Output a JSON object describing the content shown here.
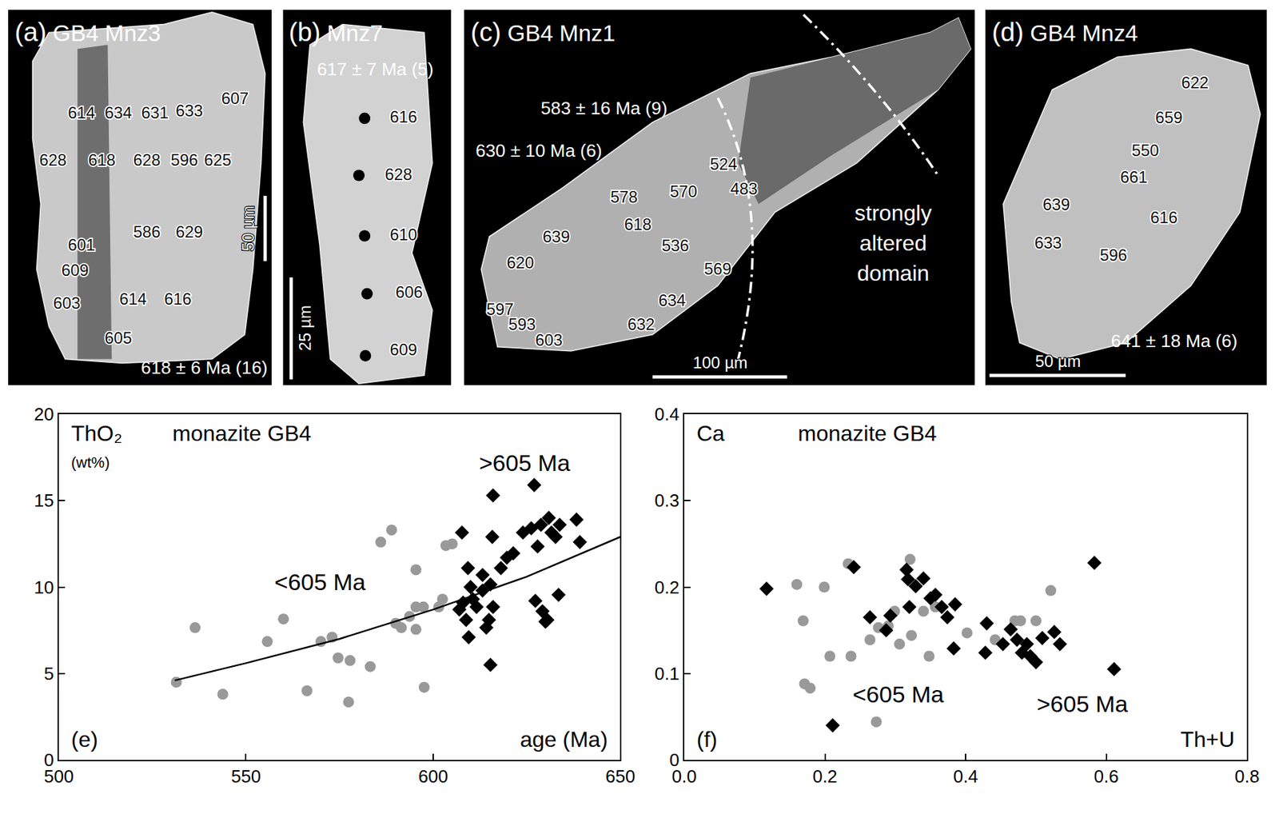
{
  "images": [
    {
      "panel": "(a)",
      "title": "GB4 Mnz3",
      "spot_ages": [
        614,
        634,
        631,
        633,
        607,
        628,
        618,
        628,
        596,
        625,
        586,
        629,
        601,
        609,
        603,
        614,
        616,
        605
      ],
      "mean_ages": [
        "618 ± 6 Ma (16)"
      ],
      "scale_bar": "50 µm"
    },
    {
      "panel": "(b)",
      "title": "Mnz7",
      "spot_ages": [
        616,
        628,
        610,
        606,
        609
      ],
      "mean_ages": [
        "617 ± 7 Ma (5)"
      ],
      "scale_bar": "25 µm"
    },
    {
      "panel": "(c)",
      "title": "GB4 Mnz1",
      "spot_ages": [
        524,
        483,
        578,
        570,
        618,
        639,
        536,
        569,
        620,
        634,
        632,
        597,
        593,
        603
      ],
      "mean_ages": [
        "583 ± 16 Ma (9)",
        "630 ± 10 Ma (6)"
      ],
      "domain_label": "strongly altered domain",
      "scale_bar": "100 µm"
    },
    {
      "panel": "(d)",
      "title": "GB4 Mnz4",
      "spot_ages": [
        622,
        659,
        550,
        661,
        639,
        616,
        633,
        596
      ],
      "mean_ages": [
        "641 ± 18 Ma (6)"
      ],
      "scale_bar": "50 µm"
    }
  ],
  "chart_data": [
    {
      "type": "scatter",
      "panel": "(e)",
      "title": "monazite GB4",
      "ylabel": [
        "ThO₂",
        "(wt%)"
      ],
      "xlabel": "age (Ma)",
      "xlim": [
        500,
        650
      ],
      "xticks": [
        500,
        550,
        600,
        650
      ],
      "ylim": [
        0,
        20
      ],
      "yticks": [
        0,
        5,
        10,
        15,
        20
      ],
      "grid": false,
      "series": [
        {
          "name": "<605 Ma",
          "color": "#999999",
          "marker": "circle",
          "x": [
            531.4,
            536.4,
            543.8,
            555.7,
            560,
            566.3,
            570,
            573,
            574.6,
            577.8,
            577.4,
            583.2,
            586,
            588.9,
            590,
            591.5,
            593.7,
            595.4,
            595.4,
            595.4,
            597.4,
            597.6,
            601.5,
            602.5,
            603.4,
            605.1
          ],
          "values": [
            4.5,
            7.65,
            3.8,
            6.85,
            8.15,
            4.0,
            6.85,
            7.1,
            5.9,
            5.75,
            3.35,
            5.4,
            12.6,
            13.3,
            7.9,
            7.65,
            8.3,
            11.0,
            8.85,
            7.55,
            8.85,
            4.2,
            8.85,
            9.3,
            12.4,
            12.5
          ]
        },
        {
          "name": ">605 Ma",
          "color": "#000000",
          "marker": "diamond",
          "x": [
            607.7,
            607,
            608,
            608.8,
            610,
            609.3,
            610.6,
            611.6,
            609.5,
            613.2,
            613.2,
            614.2,
            614.9,
            615.3,
            615.3,
            615.8,
            616,
            616,
            618.1,
            619.7,
            621.4,
            624,
            626.2,
            627,
            627.3,
            627.9,
            628.8,
            629.2,
            630,
            630.5,
            630.9,
            631.6,
            632.7,
            633.8,
            633.5,
            638.3,
            639.2
          ],
          "values": [
            13.15,
            8.7,
            9.1,
            8.1,
            10.0,
            11.1,
            9.3,
            8.85,
            7.1,
            9.8,
            10.7,
            7.65,
            8.1,
            5.5,
            10.15,
            12.9,
            15.3,
            8.85,
            11.1,
            11.7,
            11.95,
            13.15,
            13.4,
            15.9,
            9.2,
            12.35,
            13.6,
            8.6,
            8.0,
            8.1,
            14.0,
            13.15,
            12.9,
            13.6,
            9.55,
            13.9,
            12.6
          ]
        },
        {
          "type": "line",
          "color": "#000000",
          "line_style": "solid",
          "x": [
            531,
            550,
            575,
            600,
            625,
            650
          ],
          "values": [
            4.6,
            5.6,
            7.0,
            8.7,
            10.6,
            12.9
          ]
        }
      ]
    },
    {
      "type": "scatter",
      "panel": "(f)",
      "title": "monazite GB4",
      "ylabel": [
        "Ca"
      ],
      "xlabel": "Th+U",
      "xlim": [
        0,
        0.8
      ],
      "xticks": [
        {
          "value": 0,
          "label": "0.0"
        },
        0.2,
        0.4,
        0.6,
        0.8
      ],
      "ylim": [
        0,
        0.4
      ],
      "yticks": [
        0,
        0.1,
        0.2,
        0.3,
        0.4
      ],
      "grid": false,
      "series": [
        {
          "name": "<605 Ma",
          "color": "#999999",
          "marker": "circle",
          "x": [
            0.16,
            0.169,
            0.171,
            0.179,
            0.199,
            0.207,
            0.233,
            0.237,
            0.264,
            0.273,
            0.276,
            0.29,
            0.299,
            0.306,
            0.321,
            0.323,
            0.34,
            0.348,
            0.357,
            0.402,
            0.442,
            0.47,
            0.478,
            0.5,
            0.521
          ],
          "values": [
            0.203,
            0.161,
            0.088,
            0.083,
            0.2,
            0.12,
            0.227,
            0.12,
            0.139,
            0.044,
            0.153,
            0.155,
            0.172,
            0.134,
            0.232,
            0.144,
            0.172,
            0.12,
            0.177,
            0.147,
            0.139,
            0.161,
            0.161,
            0.161,
            0.196
          ]
        },
        {
          "name": ">605 Ma",
          "color": "#000000",
          "marker": "diamond",
          "x": [
            0.117,
            0.211,
            0.241,
            0.264,
            0.287,
            0.293,
            0.316,
            0.318,
            0.329,
            0.32,
            0.34,
            0.35,
            0.357,
            0.366,
            0.374,
            0.385,
            0.383,
            0.43,
            0.428,
            0.453,
            0.464,
            0.473,
            0.48,
            0.487,
            0.492,
            0.5,
            0.509,
            0.526,
            0.534,
            0.583,
            0.611
          ],
          "values": [
            0.198,
            0.04,
            0.223,
            0.165,
            0.15,
            0.167,
            0.22,
            0.209,
            0.201,
            0.177,
            0.21,
            0.187,
            0.191,
            0.177,
            0.165,
            0.18,
            0.129,
            0.158,
            0.124,
            0.134,
            0.151,
            0.139,
            0.124,
            0.134,
            0.12,
            0.113,
            0.141,
            0.148,
            0.134,
            0.228,
            0.105
          ]
        }
      ]
    }
  ]
}
